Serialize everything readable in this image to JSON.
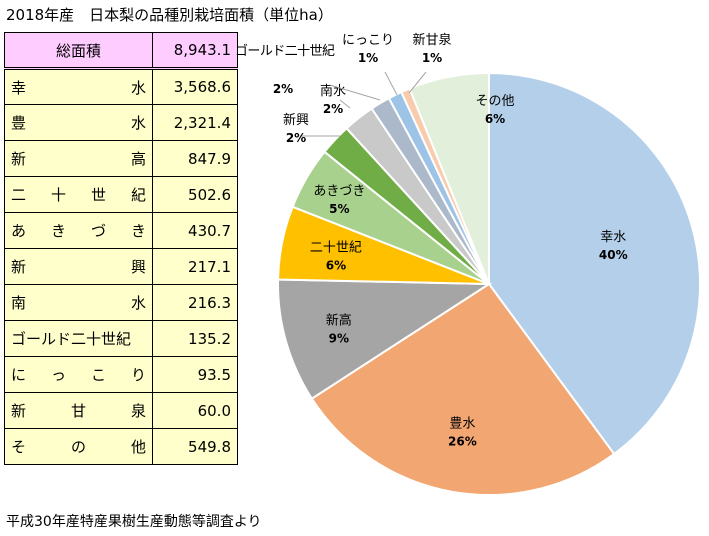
{
  "title": "2018年産　日本梨の品種別栽培面積（単位ha）",
  "table": {
    "total": {
      "label": "総面積",
      "value": "8,943.1"
    },
    "rows": [
      {
        "label": "幸水",
        "value": "3,568.6"
      },
      {
        "label": "豊水",
        "value": "2,321.4"
      },
      {
        "label": "新高",
        "value": "847.9"
      },
      {
        "label": "二十世紀",
        "value": "502.6"
      },
      {
        "label": "あきづき",
        "value": "430.7"
      },
      {
        "label": "新興",
        "value": "217.1"
      },
      {
        "label": "南水",
        "value": "216.3"
      },
      {
        "label": "ゴールド二十世紀",
        "value": "135.2"
      },
      {
        "label": "にっこり",
        "value": "93.5"
      },
      {
        "label": "新甘泉",
        "value": "60.0"
      },
      {
        "label": "その他",
        "value": "549.8"
      }
    ]
  },
  "source": "平成30年産特産果樹生産動態等調査より",
  "chart_data": {
    "type": "pie",
    "slices": [
      {
        "label": "幸水",
        "value": 3568.6,
        "pct": "40%",
        "color": "#b4cfea"
      },
      {
        "label": "豊水",
        "value": 2321.4,
        "pct": "26%",
        "color": "#f2a672"
      },
      {
        "label": "新高",
        "value": 847.9,
        "pct": "9%",
        "color": "#a5a5a5"
      },
      {
        "label": "二十世紀",
        "value": 502.6,
        "pct": "6%",
        "color": "#ffc000"
      },
      {
        "label": "あきづき",
        "value": 430.7,
        "pct": "5%",
        "color": "#a9d18e"
      },
      {
        "label": "新興",
        "value": 217.1,
        "pct": "2%",
        "color": "#70ad47"
      },
      {
        "label": "南水",
        "value": 216.3,
        "pct": "2%",
        "color": "#c9c9c9"
      },
      {
        "label": "ゴールド二十世紀",
        "value": 135.2,
        "pct": "2%",
        "color": "#acb9ca"
      },
      {
        "label": "にっこり",
        "value": 93.5,
        "pct": "1%",
        "color": "#9dc3e6"
      },
      {
        "label": "新甘泉",
        "value": 60.0,
        "pct": "1%",
        "color": "#f8cbad"
      },
      {
        "label": "その他",
        "value": 549.8,
        "pct": "6%",
        "color": "#e2efda"
      }
    ]
  }
}
